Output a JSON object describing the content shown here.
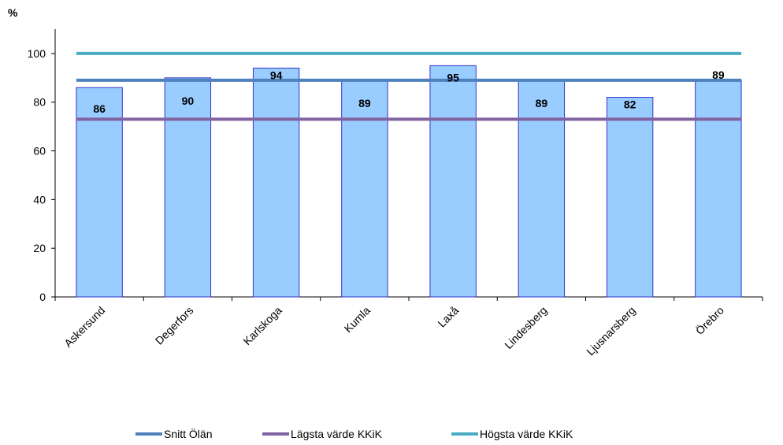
{
  "chart_data": {
    "type": "bar",
    "y_unit_label": "%",
    "categories": [
      "Askersund",
      "Degerfors",
      "Karlskoga",
      "Kumla",
      "Laxå",
      "Lindesberg",
      "Ljusnarsberg",
      "Örebro"
    ],
    "values": [
      86,
      90,
      94,
      89,
      95,
      89,
      82,
      89
    ],
    "value_labels": [
      "86",
      "90",
      "94",
      "89",
      "95",
      "89",
      "82",
      "89"
    ],
    "ylim": [
      0,
      110
    ],
    "yticks": [
      0,
      20,
      40,
      60,
      80,
      100
    ],
    "grid": false,
    "bar_color": "#99ccff",
    "bar_edge_color": "#3333cc",
    "reference_lines": [
      {
        "name": "Snitt Ölän",
        "value": 89,
        "color": "#4f81bd"
      },
      {
        "name": "Lägsta värde KKiK",
        "value": 73,
        "color": "#8064a2"
      },
      {
        "name": "Högsta värde KKiK",
        "value": 100,
        "color": "#4bacc6"
      }
    ],
    "legend_position": "bottom"
  }
}
